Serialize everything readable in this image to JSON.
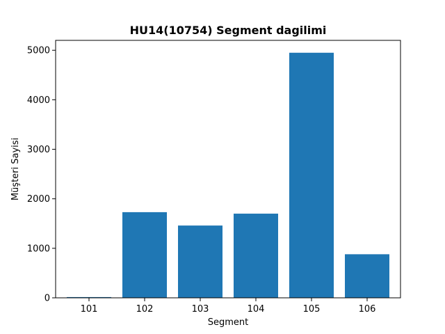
{
  "chart_data": {
    "type": "bar",
    "title": "HU14(10754) Segment dagilimi",
    "xlabel": "Segment",
    "ylabel": "Müşteri Sayisi",
    "categories": [
      "101",
      "102",
      "103",
      "104",
      "105",
      "106"
    ],
    "values": [
      15,
      1730,
      1460,
      1700,
      4950,
      880
    ],
    "ylim": [
      0,
      5200
    ],
    "yticks": [
      0,
      1000,
      2000,
      3000,
      4000,
      5000
    ],
    "grid": false,
    "bar_color": "#1f77b4"
  }
}
